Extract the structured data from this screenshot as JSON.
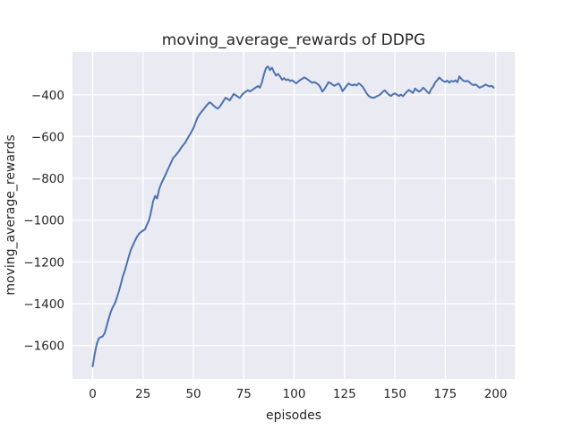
{
  "figure": {
    "background": "#ffffff",
    "plot_background": "#eaeaf2",
    "grid_color": "#ffffff",
    "text_color": "#262626"
  },
  "chart_data": {
    "type": "line",
    "title": "moving_average_rewards of DDPG",
    "xlabel": "episodes",
    "ylabel": "moving_average_rewards",
    "xlim": [
      -10,
      209.5
    ],
    "ylim": [
      -1760,
      -195
    ],
    "xticks": [
      0,
      25,
      50,
      75,
      100,
      125,
      150,
      175,
      200
    ],
    "yticks": [
      -400,
      -600,
      -800,
      -1000,
      -1200,
      -1400,
      -1600
    ],
    "grid": true,
    "legend_position": "none",
    "line_color": "#4c72b0",
    "line_width": 2,
    "series": [
      {
        "name": "moving_average_rewards",
        "points": [
          [
            0,
            -1700
          ],
          [
            1,
            -1640
          ],
          [
            2,
            -1594
          ],
          [
            3,
            -1566
          ],
          [
            4,
            -1560
          ],
          [
            5,
            -1556
          ],
          [
            6,
            -1540
          ],
          [
            7,
            -1505
          ],
          [
            8,
            -1470
          ],
          [
            9,
            -1438
          ],
          [
            10,
            -1416
          ],
          [
            11,
            -1398
          ],
          [
            12,
            -1372
          ],
          [
            13,
            -1340
          ],
          [
            14,
            -1306
          ],
          [
            15,
            -1268
          ],
          [
            16,
            -1240
          ],
          [
            17,
            -1205
          ],
          [
            18,
            -1172
          ],
          [
            19,
            -1140
          ],
          [
            20,
            -1120
          ],
          [
            21,
            -1098
          ],
          [
            22,
            -1080
          ],
          [
            23,
            -1065
          ],
          [
            24,
            -1057
          ],
          [
            25,
            -1050
          ],
          [
            26,
            -1044
          ],
          [
            27,
            -1020
          ],
          [
            28,
            -1000
          ],
          [
            29,
            -958
          ],
          [
            30,
            -910
          ],
          [
            31,
            -884
          ],
          [
            32,
            -896
          ],
          [
            33,
            -852
          ],
          [
            34,
            -826
          ],
          [
            35,
            -806
          ],
          [
            36,
            -786
          ],
          [
            37,
            -764
          ],
          [
            38,
            -744
          ],
          [
            39,
            -722
          ],
          [
            40,
            -702
          ],
          [
            41,
            -692
          ],
          [
            42,
            -680
          ],
          [
            43,
            -668
          ],
          [
            44,
            -652
          ],
          [
            45,
            -640
          ],
          [
            46,
            -628
          ],
          [
            47,
            -610
          ],
          [
            48,
            -594
          ],
          [
            49,
            -578
          ],
          [
            50,
            -560
          ],
          [
            51,
            -534
          ],
          [
            52,
            -510
          ],
          [
            53,
            -494
          ],
          [
            54,
            -482
          ],
          [
            55,
            -470
          ],
          [
            56,
            -458
          ],
          [
            57,
            -446
          ],
          [
            58,
            -436
          ],
          [
            59,
            -442
          ],
          [
            60,
            -452
          ],
          [
            61,
            -460
          ],
          [
            62,
            -466
          ],
          [
            63,
            -458
          ],
          [
            64,
            -444
          ],
          [
            65,
            -428
          ],
          [
            66,
            -414
          ],
          [
            67,
            -420
          ],
          [
            68,
            -427
          ],
          [
            69,
            -412
          ],
          [
            70,
            -396
          ],
          [
            71,
            -402
          ],
          [
            72,
            -409
          ],
          [
            73,
            -415
          ],
          [
            74,
            -402
          ],
          [
            75,
            -392
          ],
          [
            76,
            -385
          ],
          [
            77,
            -378
          ],
          [
            78,
            -384
          ],
          [
            79,
            -378
          ],
          [
            80,
            -371
          ],
          [
            81,
            -365
          ],
          [
            82,
            -358
          ],
          [
            83,
            -366
          ],
          [
            84,
            -340
          ],
          [
            85,
            -303
          ],
          [
            86,
            -272
          ],
          [
            87,
            -264
          ],
          [
            88,
            -282
          ],
          [
            89,
            -270
          ],
          [
            90,
            -292
          ],
          [
            91,
            -308
          ],
          [
            92,
            -300
          ],
          [
            93,
            -312
          ],
          [
            94,
            -328
          ],
          [
            95,
            -320
          ],
          [
            96,
            -330
          ],
          [
            97,
            -326
          ],
          [
            98,
            -334
          ],
          [
            99,
            -330
          ],
          [
            100,
            -338
          ],
          [
            101,
            -345
          ],
          [
            102,
            -337
          ],
          [
            103,
            -329
          ],
          [
            104,
            -323
          ],
          [
            105,
            -317
          ],
          [
            106,
            -322
          ],
          [
            107,
            -329
          ],
          [
            108,
            -336
          ],
          [
            109,
            -343
          ],
          [
            110,
            -339
          ],
          [
            111,
            -344
          ],
          [
            112,
            -351
          ],
          [
            113,
            -364
          ],
          [
            114,
            -385
          ],
          [
            115,
            -373
          ],
          [
            116,
            -357
          ],
          [
            117,
            -340
          ],
          [
            118,
            -344
          ],
          [
            119,
            -351
          ],
          [
            120,
            -357
          ],
          [
            121,
            -351
          ],
          [
            122,
            -346
          ],
          [
            123,
            -359
          ],
          [
            124,
            -383
          ],
          [
            125,
            -371
          ],
          [
            126,
            -357
          ],
          [
            127,
            -346
          ],
          [
            128,
            -352
          ],
          [
            129,
            -355
          ],
          [
            130,
            -350
          ],
          [
            131,
            -356
          ],
          [
            132,
            -345
          ],
          [
            133,
            -352
          ],
          [
            134,
            -362
          ],
          [
            135,
            -377
          ],
          [
            136,
            -394
          ],
          [
            137,
            -405
          ],
          [
            138,
            -412
          ],
          [
            139,
            -414
          ],
          [
            140,
            -413
          ],
          [
            141,
            -407
          ],
          [
            142,
            -403
          ],
          [
            143,
            -396
          ],
          [
            144,
            -385
          ],
          [
            145,
            -379
          ],
          [
            146,
            -390
          ],
          [
            147,
            -399
          ],
          [
            148,
            -406
          ],
          [
            149,
            -398
          ],
          [
            150,
            -393
          ],
          [
            151,
            -399
          ],
          [
            152,
            -406
          ],
          [
            153,
            -399
          ],
          [
            154,
            -407
          ],
          [
            155,
            -396
          ],
          [
            156,
            -384
          ],
          [
            157,
            -377
          ],
          [
            158,
            -385
          ],
          [
            159,
            -391
          ],
          [
            160,
            -370
          ],
          [
            161,
            -378
          ],
          [
            162,
            -385
          ],
          [
            163,
            -378
          ],
          [
            164,
            -366
          ],
          [
            165,
            -374
          ],
          [
            166,
            -386
          ],
          [
            167,
            -393
          ],
          [
            168,
            -373
          ],
          [
            169,
            -360
          ],
          [
            170,
            -341
          ],
          [
            171,
            -330
          ],
          [
            172,
            -317
          ],
          [
            173,
            -327
          ],
          [
            174,
            -334
          ],
          [
            175,
            -338
          ],
          [
            176,
            -332
          ],
          [
            177,
            -342
          ],
          [
            178,
            -333
          ],
          [
            179,
            -337
          ],
          [
            180,
            -331
          ],
          [
            181,
            -340
          ],
          [
            182,
            -312
          ],
          [
            183,
            -324
          ],
          [
            184,
            -333
          ],
          [
            185,
            -336
          ],
          [
            186,
            -333
          ],
          [
            187,
            -340
          ],
          [
            188,
            -349
          ],
          [
            189,
            -354
          ],
          [
            190,
            -350
          ],
          [
            191,
            -358
          ],
          [
            192,
            -366
          ],
          [
            193,
            -362
          ],
          [
            194,
            -357
          ],
          [
            195,
            -351
          ],
          [
            196,
            -356
          ],
          [
            197,
            -360
          ],
          [
            198,
            -357
          ],
          [
            199,
            -366
          ]
        ]
      }
    ]
  }
}
